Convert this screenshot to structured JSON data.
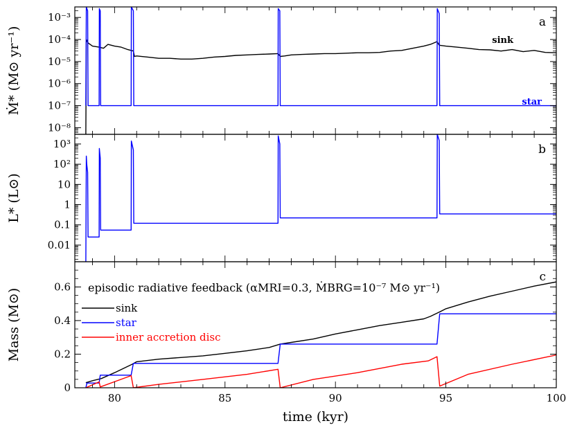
{
  "chart_data": {
    "x_label": "time (kyr)",
    "x_ticks": [
      "80",
      "85",
      "90",
      "95",
      "100"
    ],
    "xlim": [
      78.2,
      100
    ],
    "colors": {
      "sink": "#000000",
      "star": "#0000ff",
      "disc": "#ff0000"
    },
    "panels": [
      {
        "type": "line",
        "letter": "a",
        "y_label": "Ṁ* (M⊙ yr⁻¹)",
        "y_scale": "log",
        "ylim": [
          5e-09,
          0.003
        ],
        "y_ticks": [
          {
            "v": 0.001,
            "label": "10⁻³"
          },
          {
            "v": 0.0001,
            "label": "10⁻⁴"
          },
          {
            "v": 1e-05,
            "label": "10⁻⁵"
          },
          {
            "v": 1e-06,
            "label": "10⁻⁶"
          },
          {
            "v": 1e-07,
            "label": "10⁻⁷"
          },
          {
            "v": 1e-08,
            "label": "10⁻⁸"
          }
        ],
        "labels": {
          "sink": "sink",
          "star": "star"
        },
        "series": [
          {
            "key": "sink",
            "x": [
              78.7,
              78.72,
              78.8,
              79.0,
              79.3,
              79.5,
              79.7,
              80.0,
              80.3,
              80.6,
              80.85,
              80.9,
              81.0,
              81.5,
              82.0,
              82.5,
              83.0,
              83.5,
              84.0,
              84.5,
              85.0,
              85.5,
              86.0,
              86.5,
              87.0,
              87.4,
              87.5,
              87.7,
              88.0,
              88.5,
              89.0,
              89.5,
              90.0,
              90.5,
              91.0,
              91.5,
              92.0,
              92.5,
              93.0,
              93.5,
              94.0,
              94.3,
              94.6,
              94.7,
              95.0,
              95.5,
              96.0,
              96.5,
              97.0,
              97.5,
              98.0,
              98.5,
              99.0,
              99.5,
              100.0
            ],
            "y": [
              5e-09,
              0.0001,
              7e-05,
              5e-05,
              4.5e-05,
              4e-05,
              6e-05,
              5e-05,
              4.5e-05,
              3.5e-05,
              3e-05,
              1.7e-05,
              1.8e-05,
              1.6e-05,
              1.4e-05,
              1.4e-05,
              1.3e-05,
              1.3e-05,
              1.4e-05,
              1.6e-05,
              1.7e-05,
              1.9e-05,
              2e-05,
              2.1e-05,
              2.2e-05,
              2.3e-05,
              1.7e-05,
              1.8e-05,
              2e-05,
              2.1e-05,
              2.2e-05,
              2.3e-05,
              2.3e-05,
              2.4e-05,
              2.5e-05,
              2.5e-05,
              2.6e-05,
              3e-05,
              3.2e-05,
              4e-05,
              5e-05,
              6e-05,
              8e-05,
              5.5e-05,
              5e-05,
              4.5e-05,
              4e-05,
              3.5e-05,
              3.4e-05,
              3e-05,
              3.5e-05,
              2.8e-05,
              3.2e-05,
              2.6e-05,
              2.5e-05
            ]
          },
          {
            "key": "star",
            "x": [
              78.7,
              78.72,
              78.78,
              78.8,
              79.3,
              79.31,
              79.35,
              79.37,
              80.75,
              80.76,
              80.85,
              80.87,
              87.4,
              87.41,
              87.48,
              87.5,
              94.6,
              94.61,
              94.7,
              94.72,
              100.0
            ],
            "y": [
              1e-07,
              0.003,
              0.002,
              1e-07,
              1e-07,
              0.0025,
              0.002,
              1e-07,
              1e-07,
              0.003,
              0.002,
              1e-07,
              1e-07,
              0.0025,
              0.002,
              1e-07,
              1e-07,
              0.0025,
              0.0015,
              1e-07,
              1e-07
            ]
          }
        ]
      },
      {
        "type": "line",
        "letter": "b",
        "y_label": "L* (L⊙)",
        "y_scale": "log",
        "ylim": [
          0.0015,
          3000
        ],
        "y_ticks": [
          {
            "v": 1000,
            "label": "10³"
          },
          {
            "v": 100,
            "label": "10²"
          },
          {
            "v": 10,
            "label": "10"
          },
          {
            "v": 1,
            "label": "1"
          },
          {
            "v": 0.1,
            "label": "0.1"
          },
          {
            "v": 0.01,
            "label": "0.01"
          }
        ],
        "series": [
          {
            "key": "star",
            "x": [
              78.7,
              78.72,
              78.74,
              78.78,
              78.8,
              79.3,
              79.31,
              79.35,
              79.37,
              80.75,
              80.76,
              80.85,
              80.87,
              87.4,
              87.41,
              87.48,
              87.5,
              94.6,
              94.61,
              94.7,
              94.72,
              100.0
            ],
            "y": [
              0.0015,
              250,
              100,
              40,
              0.025,
              0.025,
              600,
              200,
              0.055,
              0.055,
              1400,
              500,
              0.12,
              0.12,
              2500,
              1000,
              0.22,
              0.22,
              3000,
              1500,
              0.35,
              0.35
            ]
          }
        ]
      },
      {
        "type": "line",
        "letter": "c",
        "y_label": "Mass (M⊙)",
        "y_scale": "linear",
        "ylim": [
          0,
          0.75
        ],
        "y_ticks": [
          {
            "v": 0,
            "label": "0"
          },
          {
            "v": 0.2,
            "label": "0.2"
          },
          {
            "v": 0.4,
            "label": "0.4"
          },
          {
            "v": 0.6,
            "label": "0.6"
          }
        ],
        "annotation": "episodic radiative feedback (αMRI=0.3, ṀBRG=10⁻⁷ M⊙ yr⁻¹)",
        "legend": [
          {
            "key": "sink",
            "label": "sink"
          },
          {
            "key": "star",
            "label": "star"
          },
          {
            "key": "disc",
            "label": "inner accretion disc"
          }
        ],
        "series": [
          {
            "key": "sink",
            "x": [
              78.7,
              79.0,
              79.4,
              80.0,
              80.8,
              81.0,
              82.0,
              83.0,
              84.0,
              85.0,
              86.0,
              87.0,
              87.5,
              88.0,
              89.0,
              90.0,
              91.0,
              92.0,
              93.0,
              94.0,
              94.3,
              94.7,
              95.0,
              96.0,
              97.0,
              98.0,
              99.0,
              100.0
            ],
            "y": [
              0.03,
              0.042,
              0.055,
              0.09,
              0.14,
              0.155,
              0.17,
              0.18,
              0.19,
              0.205,
              0.22,
              0.24,
              0.26,
              0.27,
              0.29,
              0.32,
              0.345,
              0.37,
              0.39,
              0.41,
              0.425,
              0.45,
              0.47,
              0.51,
              0.545,
              0.575,
              0.605,
              0.63
            ]
          },
          {
            "key": "star",
            "x": [
              78.7,
              78.75,
              79.3,
              79.35,
              80.75,
              80.85,
              87.4,
              87.5,
              94.6,
              94.72,
              100.0
            ],
            "y": [
              0.0,
              0.028,
              0.028,
              0.075,
              0.075,
              0.145,
              0.145,
              0.26,
              0.26,
              0.44,
              0.44
            ]
          },
          {
            "key": "disc",
            "x": [
              78.7,
              79.3,
              79.35,
              80.75,
              80.85,
              82.0,
              84.0,
              86.0,
              87.4,
              87.5,
              89.0,
              91.0,
              93.0,
              94.2,
              94.6,
              94.72,
              96.0,
              98.0,
              100.0
            ],
            "y": [
              0.0,
              0.035,
              0.005,
              0.072,
              0.0,
              0.02,
              0.05,
              0.08,
              0.11,
              0.0,
              0.05,
              0.09,
              0.14,
              0.16,
              0.185,
              0.01,
              0.08,
              0.14,
              0.195
            ]
          }
        ]
      }
    ]
  }
}
